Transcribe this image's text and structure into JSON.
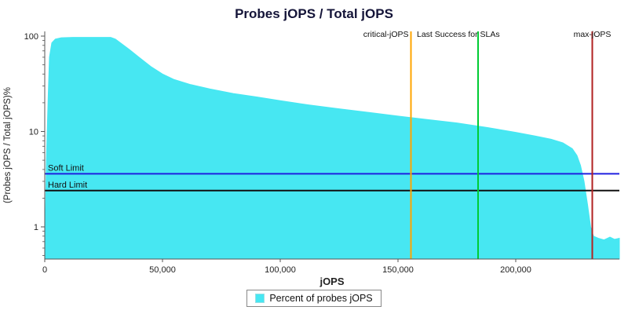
{
  "chart_data": {
    "type": "area",
    "title": "Probes jOPS / Total jOPS",
    "xlabel": "jOPS",
    "ylabel": "(Probes jOPS / Total jOPS)%",
    "grid": "off",
    "x_axis": {
      "min": 0,
      "max": 244000,
      "ticks": [
        {
          "v": 0,
          "label": "0"
        },
        {
          "v": 50000,
          "label": "50,000"
        },
        {
          "v": 100000,
          "label": "100,000"
        },
        {
          "v": 150000,
          "label": "150,000"
        },
        {
          "v": 200000,
          "label": "200,000"
        }
      ]
    },
    "y_axis": {
      "scale": "log",
      "min": 0.46,
      "max": 112,
      "ticks": [
        {
          "v": 1,
          "label": "1"
        },
        {
          "v": 10,
          "label": "10"
        },
        {
          "v": 100,
          "label": "100"
        }
      ]
    },
    "series": [
      {
        "name": "Percent of probes jOPS",
        "color": "#47E7F2",
        "points": [
          [
            0,
            0.5
          ],
          [
            700,
            5
          ],
          [
            1500,
            25
          ],
          [
            2000,
            60
          ],
          [
            3000,
            85
          ],
          [
            4500,
            93
          ],
          [
            7000,
            96
          ],
          [
            12000,
            97
          ],
          [
            20000,
            97
          ],
          [
            28000,
            97
          ],
          [
            30000,
            93
          ],
          [
            33000,
            82
          ],
          [
            36000,
            72
          ],
          [
            40000,
            60
          ],
          [
            45000,
            48
          ],
          [
            50000,
            40
          ],
          [
            55000,
            35
          ],
          [
            62000,
            31
          ],
          [
            70000,
            28
          ],
          [
            80000,
            25
          ],
          [
            90000,
            23
          ],
          [
            100000,
            21
          ],
          [
            112000,
            19
          ],
          [
            125000,
            17.3
          ],
          [
            138000,
            15.8
          ],
          [
            150000,
            14.5
          ],
          [
            162000,
            13.4
          ],
          [
            175000,
            12.3
          ],
          [
            188000,
            11
          ],
          [
            200000,
            9.8
          ],
          [
            208000,
            9
          ],
          [
            215000,
            8.3
          ],
          [
            220000,
            7.6
          ],
          [
            224000,
            6.6
          ],
          [
            226000,
            5.6
          ],
          [
            227500,
            4.4
          ],
          [
            229000,
            3
          ],
          [
            230500,
            1.7
          ],
          [
            231800,
            1.0
          ],
          [
            233000,
            0.8
          ],
          [
            235000,
            0.76
          ],
          [
            237500,
            0.73
          ],
          [
            240000,
            0.78
          ],
          [
            242000,
            0.74
          ],
          [
            244000,
            0.76
          ]
        ]
      }
    ],
    "markers_vertical": [
      {
        "label": "critical-jOPS",
        "x": 155500,
        "color": "#FFA500",
        "label_anchor": "end"
      },
      {
        "label": "Last Success for SLAs",
        "x": 184000,
        "color": "#00CC33",
        "label_anchor": "start",
        "label_x": 157000
      },
      {
        "label": "max-jOPS",
        "x": 232500,
        "color": "#B22222",
        "label_anchor": "middle"
      }
    ],
    "markers_horizontal": [
      {
        "label": "Soft Limit",
        "y": 3.6,
        "color": "#2020E0"
      },
      {
        "label": "Hard Limit",
        "y": 2.4,
        "color": "#111111"
      }
    ],
    "legend": {
      "label": "Percent of probes jOPS",
      "swatch_color": "#47E7F2"
    },
    "text_color": "#222222",
    "axis_color": "#555555"
  }
}
